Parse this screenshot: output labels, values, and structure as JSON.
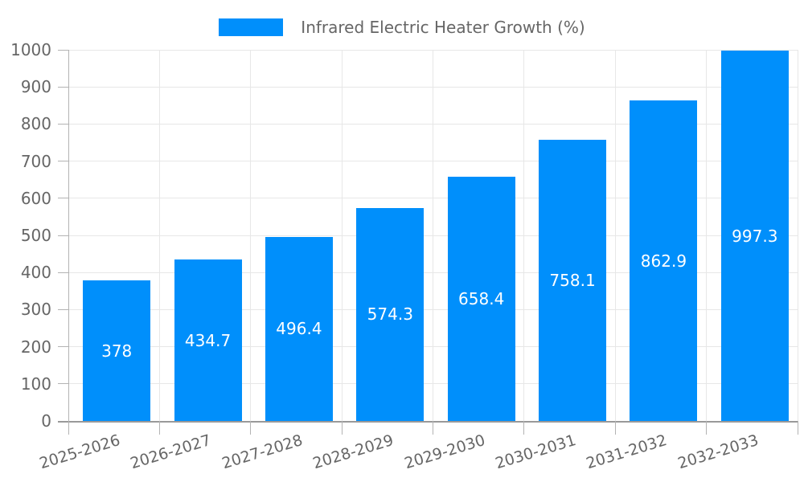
{
  "legend": {
    "label": "Infrared Electric Heater Growth (%)"
  },
  "chart_data": {
    "type": "bar",
    "title": "",
    "xlabel": "",
    "ylabel": "",
    "categories": [
      "2025-2026",
      "2026-2027",
      "2027-2028",
      "2028-2029",
      "2029-2030",
      "2030-2031",
      "2031-2032",
      "2032-2033"
    ],
    "series": [
      {
        "name": "Infrared Electric Heater Growth (%)",
        "values": [
          378,
          434.7,
          496.4,
          574.3,
          658.4,
          758.1,
          862.9,
          997.3
        ]
      }
    ],
    "value_labels": [
      "378",
      "434.7",
      "496.4",
      "574.3",
      "658.4",
      "758.1",
      "862.9",
      "997.3"
    ],
    "ylim": [
      0,
      1000
    ],
    "ytick_step": 100,
    "ytick_labels": [
      "0",
      "100",
      "200",
      "300",
      "400",
      "500",
      "600",
      "700",
      "800",
      "900",
      "1000"
    ],
    "grid": true,
    "legend_position": "top",
    "bar_label_position": "center",
    "colors": {
      "bar": "#008FFB",
      "grid": "#e7e7e7",
      "axis": "#999999",
      "tick": "#b3b3b3",
      "text": "#666666",
      "bar_label": "#ffffff",
      "background": "#ffffff"
    }
  }
}
